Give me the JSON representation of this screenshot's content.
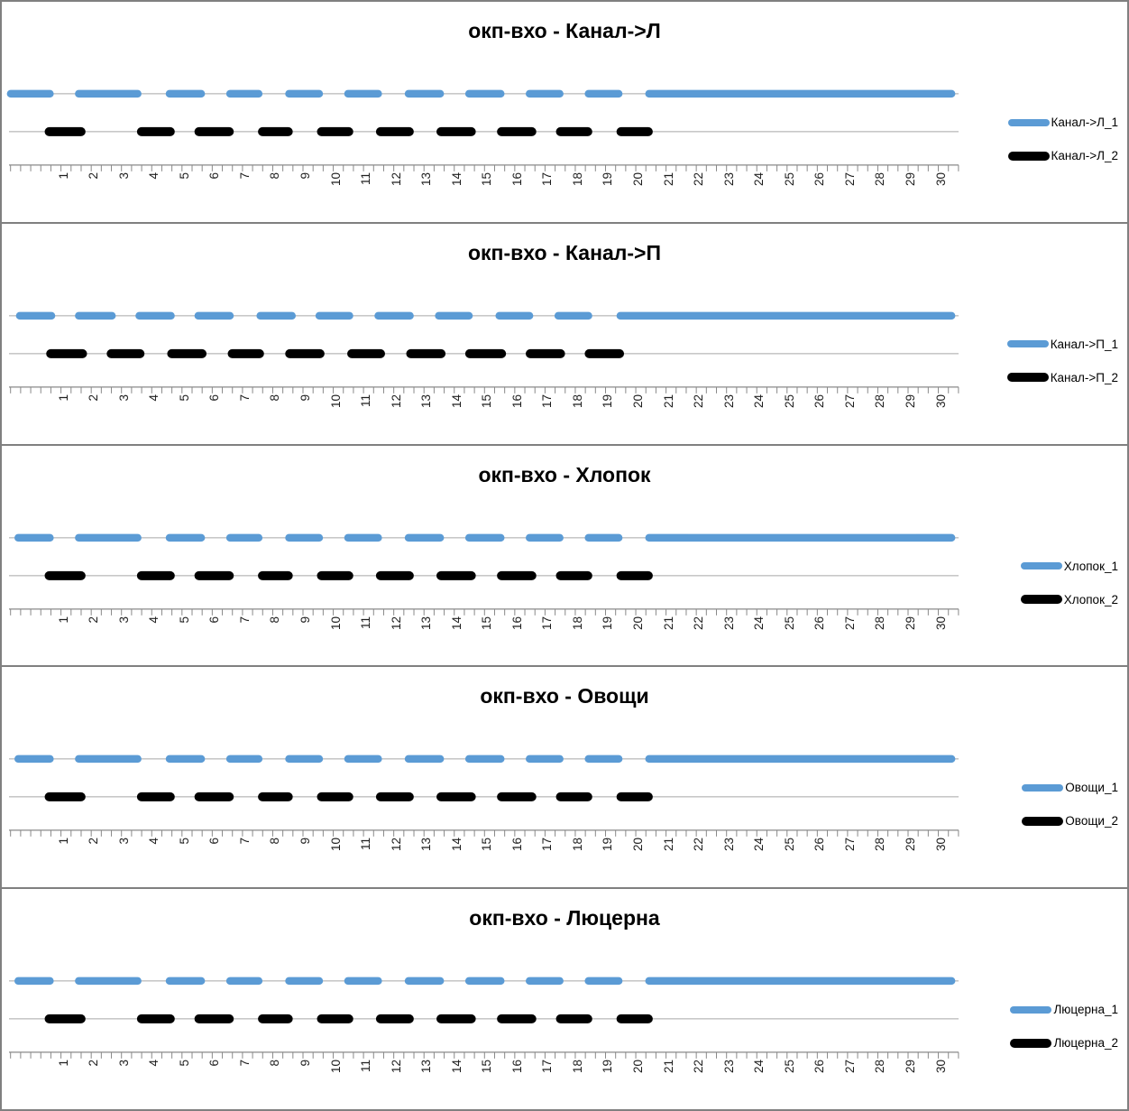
{
  "page": {
    "background": "#ffffff",
    "border_color": "#808080"
  },
  "colors": {
    "series1": "#5B9BD5",
    "series2": "#000000",
    "baseline": "#A6A6A6",
    "axis": "#898989",
    "tick_label": "#1f1f1f",
    "title": "#000000"
  },
  "axis": {
    "x_ticks": [
      1,
      2,
      3,
      4,
      5,
      6,
      7,
      8,
      9,
      10,
      11,
      12,
      13,
      14,
      15,
      16,
      17,
      18,
      19,
      20,
      21,
      22,
      23,
      24,
      25,
      26,
      27,
      28,
      29,
      30
    ],
    "minor_ticks_per_category": 3,
    "labels_rotated": "bottom-to-top",
    "grid": "off"
  },
  "chart_data": [
    {
      "type": "line",
      "title": "окп-вхо - Канал->Л",
      "x_range": [
        1,
        30
      ],
      "legend_position": "right",
      "series": [
        {
          "name": "Канал->Л_1",
          "color": "#5B9BD5",
          "on_intervals": [
            [
              -0.8,
              0.75
            ],
            [
              1.45,
              3.65
            ],
            [
              4.45,
              5.75
            ],
            [
              6.45,
              7.65
            ],
            [
              8.4,
              9.65
            ],
            [
              10.35,
              11.6
            ],
            [
              12.35,
              13.65
            ],
            [
              14.35,
              15.65
            ],
            [
              16.35,
              17.6
            ],
            [
              18.3,
              19.55
            ],
            [
              20.3,
              30.55
            ]
          ]
        },
        {
          "name": "Канал->Л_2",
          "color": "#000000",
          "on_intervals": [
            [
              0.45,
              1.8
            ],
            [
              3.5,
              4.75
            ],
            [
              5.4,
              6.7
            ],
            [
              7.5,
              8.65
            ],
            [
              9.45,
              10.65
            ],
            [
              11.4,
              12.65
            ],
            [
              13.4,
              14.7
            ],
            [
              15.4,
              16.7
            ],
            [
              17.35,
              18.55
            ],
            [
              19.35,
              20.55
            ]
          ]
        }
      ]
    },
    {
      "type": "line",
      "title": "окп-вхо - Канал->П",
      "x_range": [
        1,
        30
      ],
      "legend_position": "right",
      "series": [
        {
          "name": "Канал->П_1",
          "color": "#5B9BD5",
          "on_intervals": [
            [
              -0.5,
              0.8
            ],
            [
              1.45,
              2.8
            ],
            [
              3.45,
              4.75
            ],
            [
              5.4,
              6.7
            ],
            [
              7.45,
              8.75
            ],
            [
              9.4,
              10.65
            ],
            [
              11.35,
              12.65
            ],
            [
              13.35,
              14.6
            ],
            [
              15.35,
              16.6
            ],
            [
              17.3,
              18.55
            ],
            [
              19.35,
              30.55
            ]
          ]
        },
        {
          "name": "Канал->П_2",
          "color": "#000000",
          "on_intervals": [
            [
              0.5,
              1.85
            ],
            [
              2.5,
              3.75
            ],
            [
              4.5,
              5.8
            ],
            [
              6.5,
              7.7
            ],
            [
              8.4,
              9.7
            ],
            [
              10.45,
              11.7
            ],
            [
              12.4,
              13.7
            ],
            [
              14.35,
              15.7
            ],
            [
              16.35,
              17.65
            ],
            [
              18.3,
              19.6
            ]
          ]
        }
      ]
    },
    {
      "type": "line",
      "title": "окп-вхо - Хлопок",
      "x_range": [
        1,
        30
      ],
      "legend_position": "right",
      "series": [
        {
          "name": "Хлопок_1",
          "color": "#5B9BD5",
          "on_intervals": [
            [
              -0.55,
              0.75
            ],
            [
              1.45,
              3.65
            ],
            [
              4.45,
              5.75
            ],
            [
              6.45,
              7.65
            ],
            [
              8.4,
              9.65
            ],
            [
              10.35,
              11.6
            ],
            [
              12.35,
              13.65
            ],
            [
              14.35,
              15.65
            ],
            [
              16.35,
              17.6
            ],
            [
              18.3,
              19.55
            ],
            [
              20.3,
              30.55
            ]
          ]
        },
        {
          "name": "Хлопок_2",
          "color": "#000000",
          "on_intervals": [
            [
              0.45,
              1.8
            ],
            [
              3.5,
              4.75
            ],
            [
              5.4,
              6.7
            ],
            [
              7.5,
              8.65
            ],
            [
              9.45,
              10.65
            ],
            [
              11.4,
              12.65
            ],
            [
              13.4,
              14.7
            ],
            [
              15.4,
              16.7
            ],
            [
              17.35,
              18.55
            ],
            [
              19.35,
              20.55
            ]
          ]
        }
      ]
    },
    {
      "type": "line",
      "title": "окп-вхо - Овощи",
      "x_range": [
        1,
        30
      ],
      "legend_position": "right",
      "series": [
        {
          "name": "Овощи_1",
          "color": "#5B9BD5",
          "on_intervals": [
            [
              -0.55,
              0.75
            ],
            [
              1.45,
              3.65
            ],
            [
              4.45,
              5.75
            ],
            [
              6.45,
              7.65
            ],
            [
              8.4,
              9.65
            ],
            [
              10.35,
              11.6
            ],
            [
              12.35,
              13.65
            ],
            [
              14.35,
              15.65
            ],
            [
              16.35,
              17.6
            ],
            [
              18.3,
              19.55
            ],
            [
              20.3,
              30.55
            ]
          ]
        },
        {
          "name": "Овощи_2",
          "color": "#000000",
          "on_intervals": [
            [
              0.45,
              1.8
            ],
            [
              3.5,
              4.75
            ],
            [
              5.4,
              6.7
            ],
            [
              7.5,
              8.65
            ],
            [
              9.45,
              10.65
            ],
            [
              11.4,
              12.65
            ],
            [
              13.4,
              14.7
            ],
            [
              15.4,
              16.7
            ],
            [
              17.35,
              18.55
            ],
            [
              19.35,
              20.55
            ]
          ]
        }
      ]
    },
    {
      "type": "line",
      "title": "окп-вхо - Люцерна",
      "x_range": [
        1,
        30
      ],
      "legend_position": "right",
      "series": [
        {
          "name": "Люцерна_1",
          "color": "#5B9BD5",
          "on_intervals": [
            [
              -0.55,
              0.75
            ],
            [
              1.45,
              3.65
            ],
            [
              4.45,
              5.75
            ],
            [
              6.45,
              7.65
            ],
            [
              8.4,
              9.65
            ],
            [
              10.35,
              11.6
            ],
            [
              12.35,
              13.65
            ],
            [
              14.35,
              15.65
            ],
            [
              16.35,
              17.6
            ],
            [
              18.3,
              19.55
            ],
            [
              20.3,
              30.55
            ]
          ]
        },
        {
          "name": "Люцерна_2",
          "color": "#000000",
          "on_intervals": [
            [
              0.45,
              1.8
            ],
            [
              3.5,
              4.75
            ],
            [
              5.4,
              6.7
            ],
            [
              7.5,
              8.65
            ],
            [
              9.45,
              10.65
            ],
            [
              11.4,
              12.65
            ],
            [
              13.4,
              14.7
            ],
            [
              15.4,
              16.7
            ],
            [
              17.35,
              18.55
            ],
            [
              19.35,
              20.55
            ]
          ]
        }
      ]
    }
  ]
}
